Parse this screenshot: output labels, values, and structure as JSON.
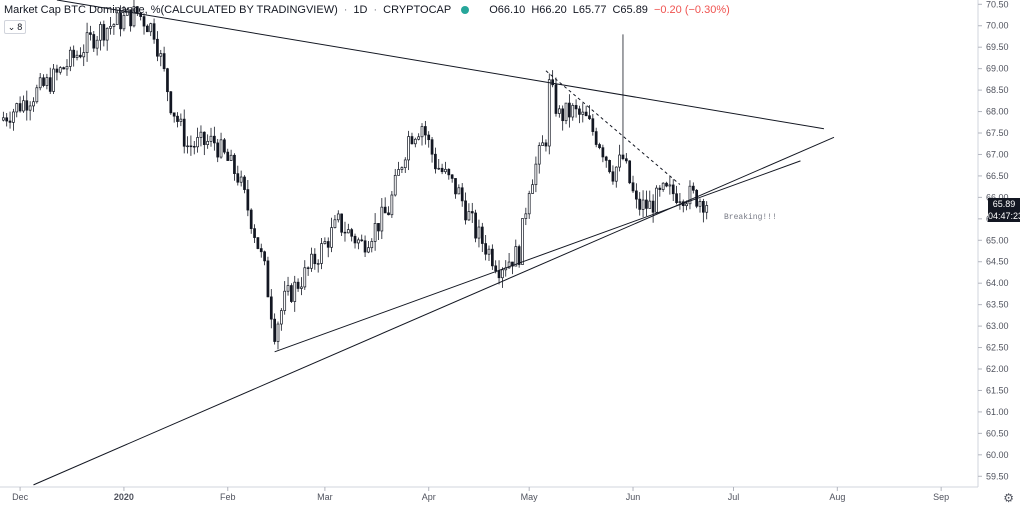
{
  "header": {
    "symbol_title": "Market Cap BTC Dominance, %(CALCULATED BY TRADINGVIEW)",
    "separator": "·",
    "interval": "1D",
    "exchange": "CRYPTOCAP",
    "open": "O66.10",
    "high": "H66.20",
    "low": "L65.77",
    "close": "C65.89",
    "change": "−0.20 (−0.30%)",
    "legend_count": "8"
  },
  "price_axis": {
    "last_price": "65.89",
    "countdown": "04:47:23"
  },
  "annotation": {
    "text": "Breaking!!!"
  },
  "colors": {
    "up": "#26a69a",
    "down": "#ef5350",
    "text": "#131722",
    "axis": "#50535e"
  },
  "chart_data": {
    "type": "candlestick",
    "title": "Market Cap BTC Dominance, %(CALCULATED BY TRADINGVIEW)",
    "xlabel": "",
    "ylabel": "",
    "ylim": [
      59.25,
      70.6
    ],
    "y_ticks": [
      "59.50",
      "60.00",
      "60.50",
      "61.00",
      "61.50",
      "62.00",
      "62.50",
      "63.00",
      "63.50",
      "64.00",
      "64.50",
      "65.00",
      "65.50",
      "66.00",
      "66.50",
      "67.00",
      "67.50",
      "68.00",
      "68.50",
      "69.00",
      "69.50",
      "70.00",
      "70.50"
    ],
    "x_ticks": [
      "Dec",
      "2020",
      "Feb",
      "Mar",
      "Apr",
      "May",
      "Jun",
      "Jul",
      "Aug",
      "Sep"
    ],
    "x_tick_dates": [
      "2019-12-01",
      "2020-01-01",
      "2020-02-01",
      "2020-03-01",
      "2020-04-01",
      "2020-05-01",
      "2020-06-01",
      "2020-07-01",
      "2020-08-01",
      "2020-09-01"
    ],
    "x_range": [
      "2019-11-25",
      "2020-09-12"
    ],
    "key_points": [
      {
        "date": "2019-11-25",
        "close": 67.8
      },
      {
        "date": "2019-12-10",
        "close": 68.7
      },
      {
        "date": "2019-12-25",
        "close": 69.9
      },
      {
        "date": "2020-01-05",
        "close": 70.3
      },
      {
        "date": "2020-01-10",
        "close": 69.9
      },
      {
        "date": "2020-01-15",
        "close": 68.2
      },
      {
        "date": "2020-01-20",
        "close": 67.2
      },
      {
        "date": "2020-01-28",
        "close": 67.3
      },
      {
        "date": "2020-02-04",
        "close": 66.5
      },
      {
        "date": "2020-02-08",
        "close": 65.5
      },
      {
        "date": "2020-02-12",
        "close": 64.3
      },
      {
        "date": "2020-02-15",
        "close": 62.9
      },
      {
        "date": "2020-02-18",
        "close": 63.6
      },
      {
        "date": "2020-02-25",
        "close": 64.3
      },
      {
        "date": "2020-03-05",
        "close": 65.4
      },
      {
        "date": "2020-03-12",
        "close": 64.9
      },
      {
        "date": "2020-03-20",
        "close": 65.7
      },
      {
        "date": "2020-03-26",
        "close": 67.4
      },
      {
        "date": "2020-03-30",
        "close": 67.7
      },
      {
        "date": "2020-04-03",
        "close": 66.8
      },
      {
        "date": "2020-04-10",
        "close": 66.1
      },
      {
        "date": "2020-04-15",
        "close": 65.2
      },
      {
        "date": "2020-04-22",
        "close": 64.4
      },
      {
        "date": "2020-04-28",
        "close": 64.7
      },
      {
        "date": "2020-05-01",
        "close": 66.3
      },
      {
        "date": "2020-05-06",
        "close": 67.4
      },
      {
        "date": "2020-05-07",
        "close": 68.6
      },
      {
        "date": "2020-05-10",
        "close": 67.9
      },
      {
        "date": "2020-05-14",
        "close": 68.0
      },
      {
        "date": "2020-05-18",
        "close": 67.8
      },
      {
        "date": "2020-05-22",
        "close": 67.3
      },
      {
        "date": "2020-05-26",
        "close": 66.6
      },
      {
        "date": "2020-05-29",
        "close": 66.9
      },
      {
        "date": "2020-06-02",
        "close": 65.8
      },
      {
        "date": "2020-06-06",
        "close": 65.8
      },
      {
        "date": "2020-06-10",
        "close": 66.1
      },
      {
        "date": "2020-06-15",
        "close": 66.1
      },
      {
        "date": "2020-06-20",
        "close": 66.0
      },
      {
        "date": "2020-06-23",
        "close": 65.89
      }
    ],
    "spike": {
      "date": "2020-05-29",
      "high": 69.8
    },
    "trendlines": [
      {
        "name": "upper-resistance",
        "style": "solid",
        "from": {
          "date": "2019-12-12",
          "value": 70.6
        },
        "to": {
          "date": "2020-07-28",
          "value": 67.6
        }
      },
      {
        "name": "upper-support",
        "style": "solid",
        "from": {
          "date": "2020-02-15",
          "value": 62.4
        },
        "to": {
          "date": "2020-07-21",
          "value": 66.85
        }
      },
      {
        "name": "lower-support",
        "style": "solid",
        "from": {
          "date": "2019-12-05",
          "value": 59.3
        },
        "to": {
          "date": "2020-07-31",
          "value": 67.4
        }
      },
      {
        "name": "local-downtrend",
        "style": "dashed",
        "from": {
          "date": "2020-05-06",
          "value": 68.95
        },
        "to": {
          "date": "2020-06-15",
          "value": 66.3
        }
      }
    ],
    "grid": false,
    "legend": "top-left"
  }
}
